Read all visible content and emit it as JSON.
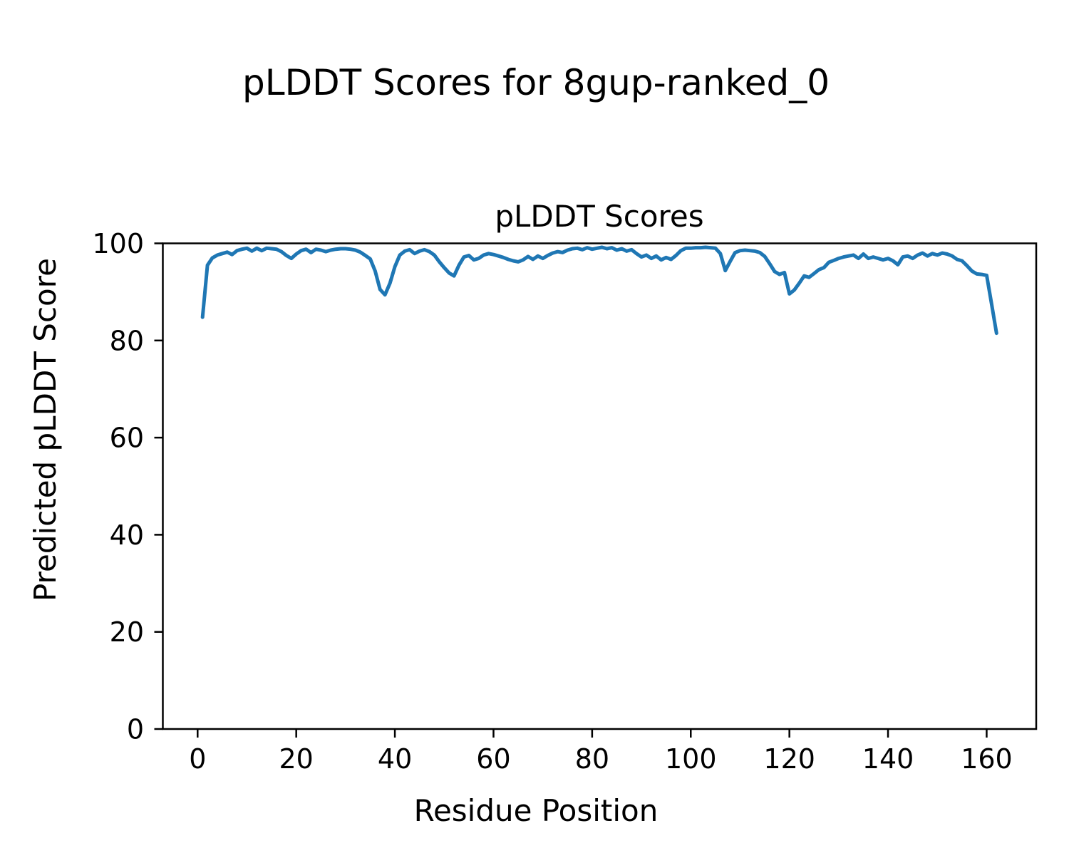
{
  "figure": {
    "suptitle": "pLDDT Scores for 8gup-ranked_0"
  },
  "chart_data": {
    "type": "line",
    "title": "pLDDT Scores",
    "xlabel": "Residue Position",
    "ylabel": "Predicted pLDDT Score",
    "x_range": [
      1,
      162
    ],
    "xlim": [
      -7.05,
      170.05
    ],
    "ylim": [
      0,
      100
    ],
    "xticks": [
      0,
      20,
      40,
      60,
      80,
      100,
      120,
      140,
      160
    ],
    "yticks": [
      0,
      20,
      40,
      60,
      80,
      100
    ],
    "grid": false,
    "legend": null,
    "line_color": "#1f77b4",
    "line_width": 5,
    "background": "#ffffff",
    "series": [
      {
        "name": "pLDDT",
        "x_start": 1,
        "values": [
          84.8,
          95.5,
          97.0,
          97.6,
          97.9,
          98.2,
          97.7,
          98.5,
          98.8,
          99.0,
          98.4,
          99.0,
          98.5,
          99.0,
          98.9,
          98.8,
          98.3,
          97.5,
          96.9,
          97.8,
          98.5,
          98.8,
          98.1,
          98.8,
          98.6,
          98.3,
          98.6,
          98.8,
          98.9,
          98.9,
          98.8,
          98.6,
          98.2,
          97.5,
          96.8,
          94.3,
          90.5,
          89.4,
          91.8,
          95.2,
          97.6,
          98.4,
          98.7,
          97.9,
          98.4,
          98.7,
          98.3,
          97.6,
          96.2,
          95.0,
          93.9,
          93.3,
          95.5,
          97.2,
          97.5,
          96.6,
          96.9,
          97.6,
          97.9,
          97.7,
          97.4,
          97.1,
          96.7,
          96.4,
          96.2,
          96.6,
          97.3,
          96.7,
          97.4,
          96.9,
          97.5,
          98.0,
          98.3,
          98.1,
          98.6,
          98.9,
          99.0,
          98.7,
          99.1,
          98.8,
          99.0,
          99.2,
          98.9,
          99.1,
          98.6,
          98.9,
          98.4,
          98.7,
          97.9,
          97.2,
          97.6,
          96.9,
          97.4,
          96.6,
          97.1,
          96.7,
          97.5,
          98.5,
          99.0,
          99.0,
          99.1,
          99.1,
          99.2,
          99.1,
          99.0,
          97.9,
          94.4,
          96.3,
          98.1,
          98.5,
          98.6,
          98.5,
          98.4,
          98.1,
          97.3,
          95.8,
          94.2,
          93.6,
          94.0,
          89.6,
          90.4,
          91.8,
          93.3,
          93.0,
          93.8,
          94.6,
          95.0,
          96.1,
          96.5,
          96.9,
          97.2,
          97.4,
          97.6,
          96.9,
          97.8,
          96.9,
          97.2,
          96.9,
          96.6,
          96.9,
          96.4,
          95.6,
          97.2,
          97.4,
          96.9,
          97.6,
          98.0,
          97.4,
          97.9,
          97.6,
          98.0,
          97.8,
          97.4,
          96.7,
          96.4,
          95.4,
          94.3,
          93.7,
          93.6,
          93.4,
          87.5,
          81.5
        ]
      }
    ]
  }
}
